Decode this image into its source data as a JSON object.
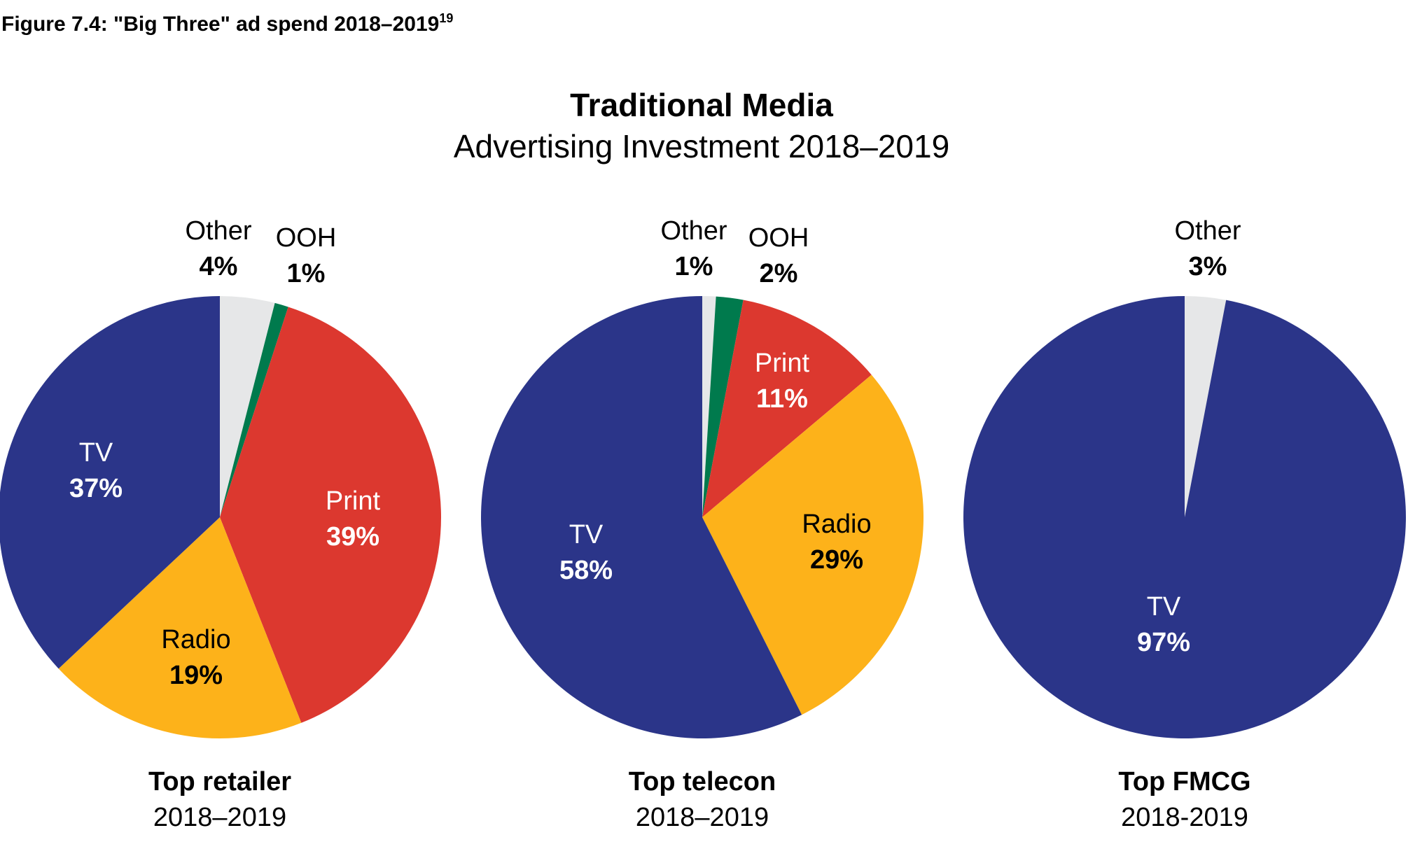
{
  "figure_title": "Figure 7.4: \"Big Three\" ad spend 2018–2019",
  "figure_title_sup": "19",
  "chart_title": "Traditional Media",
  "chart_subtitle": "Advertising Investment 2018–2019",
  "colors": {
    "TV": "#2B3589",
    "Print": "#DC382F",
    "Radio": "#FDB21A",
    "OOH": "#007A4D",
    "Other": "#E6E7E8"
  },
  "chart_data": [
    {
      "type": "pie",
      "title": "Top retailer",
      "subtitle": "2018–2019",
      "start": "top",
      "direction": "clockwise",
      "slices": [
        {
          "label": "Other",
          "value": 4,
          "display": "4%"
        },
        {
          "label": "OOH",
          "value": 1,
          "display": "1%"
        },
        {
          "label": "Print",
          "value": 39,
          "display": "39%"
        },
        {
          "label": "Radio",
          "value": 19,
          "display": "19%"
        },
        {
          "label": "TV",
          "value": 37,
          "display": "37%"
        }
      ]
    },
    {
      "type": "pie",
      "title": "Top telecon",
      "subtitle": "2018–2019",
      "start": "top",
      "direction": "clockwise",
      "slices": [
        {
          "label": "Other",
          "value": 1,
          "display": "1%"
        },
        {
          "label": "OOH",
          "value": 2,
          "display": "2%"
        },
        {
          "label": "Print",
          "value": 11,
          "display": "11%"
        },
        {
          "label": "Radio",
          "value": 29,
          "display": "29%"
        },
        {
          "label": "TV",
          "value": 58,
          "display": "58%"
        }
      ]
    },
    {
      "type": "pie",
      "title": "Top FMCG",
      "subtitle": "2018-2019",
      "start": "top",
      "direction": "clockwise",
      "slices": [
        {
          "label": "Other",
          "value": 3,
          "display": "3%"
        },
        {
          "label": "TV",
          "value": 97,
          "display": "97%"
        }
      ]
    }
  ]
}
